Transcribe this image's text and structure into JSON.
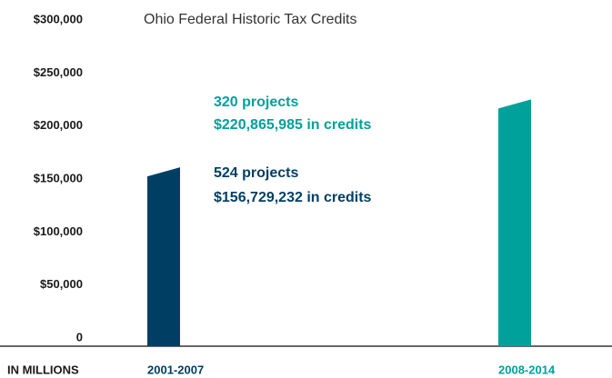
{
  "chart_data": {
    "type": "bar",
    "title": "Ohio Federal Historic Tax Credits",
    "axis_note": "IN MILLIONS",
    "categories": [
      "2001-2007",
      "2008-2014"
    ],
    "values": [
      156729.232,
      220865.985
    ],
    "value_labels": [
      "$156,729,232 in credits",
      "$220,865,985 in credits"
    ],
    "project_labels": [
      "524 projects",
      "320 projects"
    ],
    "colors": [
      "#003f63",
      "#00a19a"
    ],
    "ylim": [
      0,
      300000
    ],
    "yticks": [
      0,
      {
        "value": 50000,
        "label": "$50,000"
      },
      {
        "value": 100000,
        "label": "$100,000"
      },
      {
        "value": 150000,
        "label": "$150,000"
      },
      {
        "value": 200000,
        "label": "$200,000"
      },
      {
        "value": 250000,
        "label": "$250,000"
      },
      {
        "value": 300000,
        "label": "$300,000"
      }
    ],
    "grid": false
  }
}
